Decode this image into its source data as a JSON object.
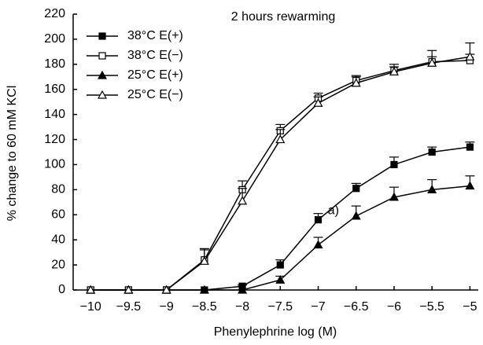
{
  "chart_data": {
    "type": "line",
    "title": "2 hours rewarming",
    "xlabel": "Phenylephrine log (M)",
    "ylabel": "% change to 60 mM KCl",
    "x": [
      -10,
      -9.5,
      -9,
      -8.5,
      -8,
      -7.5,
      -7,
      -6.5,
      -6,
      -5.5,
      -5
    ],
    "series": [
      {
        "name": "38°C E(+)",
        "color": "#000000",
        "marker": "square",
        "filled": true,
        "values": [
          0,
          0,
          0,
          0,
          3,
          20,
          56,
          81,
          100,
          110,
          114
        ],
        "errors": [
          0,
          0,
          0,
          0,
          1,
          4,
          5,
          4,
          6,
          4,
          4
        ]
      },
      {
        "name": "38°C E(−)",
        "color": "#000000",
        "marker": "square",
        "filled": false,
        "values": [
          0,
          0,
          0,
          24,
          80,
          127,
          153,
          167,
          175,
          182,
          183
        ],
        "errors": [
          0,
          0,
          0,
          8,
          7,
          5,
          4,
          4,
          5,
          9,
          5
        ]
      },
      {
        "name": "25°C E(+)",
        "color": "#000000",
        "marker": "triangle",
        "filled": true,
        "values": [
          0,
          0,
          0,
          0,
          0,
          8,
          36,
          59,
          74,
          80,
          83
        ],
        "errors": [
          0,
          0,
          0,
          0,
          0,
          3,
          6,
          8,
          8,
          8,
          8
        ]
      },
      {
        "name": "25°C E(−)",
        "color": "#000000",
        "marker": "triangle",
        "filled": false,
        "values": [
          0,
          0,
          0,
          23,
          71,
          120,
          149,
          165,
          174,
          181,
          186
        ],
        "errors": [
          0,
          0,
          0,
          10,
          10,
          8,
          5,
          5,
          4,
          5,
          11
        ]
      }
    ],
    "annotations": [
      {
        "text": "a)",
        "x": -6.8,
        "y": 63
      }
    ],
    "xlim": [
      -10.23,
      -4.89
    ],
    "ylim": [
      0,
      220
    ],
    "xticks": [
      {
        "value": -10,
        "label": "−10"
      },
      {
        "value": -9.5,
        "label": "−9.5"
      },
      {
        "value": -9,
        "label": "−9"
      },
      {
        "value": -8.5,
        "label": "−8.5"
      },
      {
        "value": -8,
        "label": "−8"
      },
      {
        "value": -7.5,
        "label": "−7.5"
      },
      {
        "value": -7,
        "label": "−7"
      },
      {
        "value": -6.5,
        "label": "−6.5"
      },
      {
        "value": -6,
        "label": "−6"
      },
      {
        "value": -5.5,
        "label": "−5.5"
      },
      {
        "value": -5,
        "label": "−5"
      }
    ],
    "yticks": [
      0,
      20,
      40,
      60,
      80,
      100,
      120,
      140,
      160,
      180,
      200,
      220
    ],
    "legend": "upper left",
    "grid": false
  }
}
